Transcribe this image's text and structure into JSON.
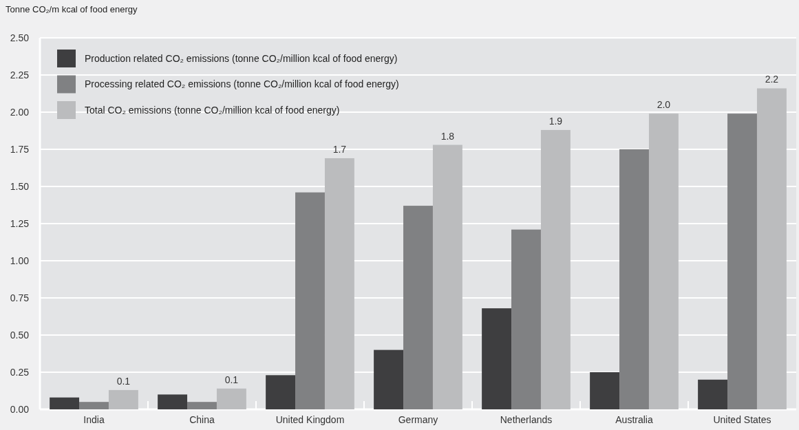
{
  "chart_data": {
    "type": "bar",
    "ylabel": "Tonne CO₂/m kcal of food energy",
    "categories": [
      "India",
      "China",
      "United Kingdom",
      "Germany",
      "Netherlands",
      "Australia",
      "United States"
    ],
    "series": [
      {
        "name": "Production related CO₂ emissions (tonne CO₂/million kcal of food energy)",
        "color": "#3e3e40",
        "values": [
          0.08,
          0.1,
          0.23,
          0.4,
          0.68,
          0.25,
          0.2
        ]
      },
      {
        "name": "Processing related CO₂ emissions (tonne CO₂/million kcal of food energy)",
        "color": "#808183",
        "values": [
          0.05,
          0.05,
          1.46,
          1.37,
          1.21,
          1.75,
          1.99
        ]
      },
      {
        "name": "Total CO₂ emissions (tonne CO₂/million kcal of food energy)",
        "color": "#bbbcbe",
        "values": [
          0.13,
          0.14,
          1.69,
          1.78,
          1.88,
          1.99,
          2.16
        ],
        "value_labels": [
          "0.1",
          "0.1",
          "1.7",
          "1.8",
          "1.9",
          "2.0",
          "2.2"
        ]
      }
    ],
    "ylim": [
      0,
      2.5
    ],
    "yticks": [
      {
        "value": 0,
        "label": "0.00"
      },
      {
        "value": 0.25,
        "label": "0.25"
      },
      {
        "value": 0.5,
        "label": "0.50"
      },
      {
        "value": 0.75,
        "label": "0.75"
      },
      {
        "value": 1,
        "label": "1.00"
      },
      {
        "value": 1.25,
        "label": "1.25"
      },
      {
        "value": 1.5,
        "label": "1.50"
      },
      {
        "value": 1.75,
        "label": "1.75"
      },
      {
        "value": 2,
        "label": "2.00"
      },
      {
        "value": 2.25,
        "label": "2.25"
      },
      {
        "value": 2.5,
        "label": "2.50"
      }
    ],
    "grid": "y",
    "legend": "top left"
  }
}
